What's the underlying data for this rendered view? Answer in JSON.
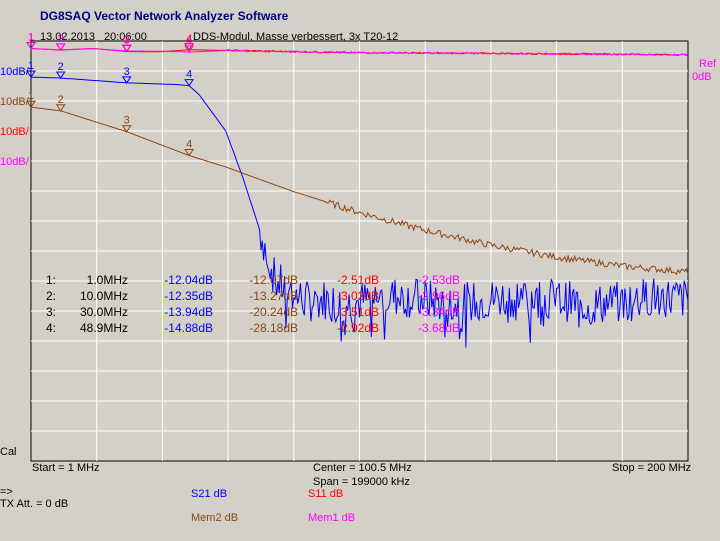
{
  "app": {
    "title": "DG8SAQ Vector Network Analyzer Software",
    "date": "13.02.2013",
    "time": "20:06:00",
    "description": "DDS-Modul, Masse verbessert, 3x T20-12"
  },
  "left_scale": {
    "labels": [
      {
        "text": "10dB/",
        "color": "#0000ff"
      },
      {
        "text": "10dB/",
        "color": "#8b4513"
      },
      {
        "text": "10dB/",
        "color": "#ff0000"
      },
      {
        "text": "10dB/",
        "color": "#ff00ff"
      }
    ],
    "cal": "Cal"
  },
  "right_scale": {
    "ref": "Ref",
    "ref_value": "0dB",
    "colors": [
      "#ff00ff",
      "#ff00ff"
    ]
  },
  "axis": {
    "start": "Start = 1 MHz",
    "center": "Center = 100.5 MHz",
    "span": "Span = 199000 kHz",
    "stop": "Stop = 200 MHz"
  },
  "bottom": {
    "arrow": "=>",
    "tx_att": "TX Att.  = 0 dB"
  },
  "legend": [
    {
      "text": "S21  dB",
      "color": "#0000ff"
    },
    {
      "text": "S11  dB",
      "color": "#ff0000"
    },
    {
      "text": "Mem2 dB",
      "color": "#8b4513"
    },
    {
      "text": "Mem1 dB",
      "color": "#ff00ff"
    }
  ],
  "marker_table": {
    "rows": [
      {
        "id": "1:",
        "freq": "1.0MHz",
        "s21": "-12.04dB",
        "mem2": "-12.07dB",
        "s11": "-2.51dB",
        "mem1": "-2.53dB"
      },
      {
        "id": "2:",
        "freq": "10.0MHz",
        "s21": "-12.35dB",
        "mem2": "-13.27dB",
        "s11": "-3.02dB",
        "mem1": "-2.96dB"
      },
      {
        "id": "3:",
        "freq": "30.0MHz",
        "s21": "-13.94dB",
        "mem2": "-20.24dB",
        "s11": "-3.51dB",
        "mem1": "-3.34dB"
      },
      {
        "id": "4:",
        "freq": "48.9MHz",
        "s21": "-14.88dB",
        "mem2": "-28.18dB",
        "s11": "-2.92dB",
        "mem1": "-3.68dB"
      }
    ]
  },
  "chart_data": {
    "type": "line",
    "x_unit": "MHz",
    "xlim": [
      1,
      200
    ],
    "grid": true,
    "series": [
      {
        "name": "S21",
        "unit": "dB",
        "color": "#0000ff",
        "x": [
          1,
          10,
          30,
          45,
          48.9,
          52,
          60,
          65,
          70,
          75,
          80,
          85,
          90,
          95,
          100,
          110,
          120,
          130,
          140,
          150,
          160,
          170,
          180,
          190,
          200
        ],
        "y": [
          -12.04,
          -12.35,
          -13.94,
          -14.5,
          -14.88,
          -18,
          -30,
          -45,
          -62,
          -80,
          -84,
          -87,
          -86,
          -88,
          -87,
          -85,
          -86,
          -88,
          -86,
          -85,
          -86,
          -88,
          -87,
          -85,
          -86
        ]
      },
      {
        "name": "Mem2",
        "unit": "dB",
        "color": "#8b4513",
        "x": [
          1,
          10,
          30,
          48.9,
          60,
          80,
          100,
          120,
          140,
          160,
          180,
          200
        ],
        "y": [
          -12.07,
          -13.27,
          -20.24,
          -28.18,
          -32,
          -40,
          -47,
          -53,
          -58,
          -62,
          -65,
          -67
        ]
      },
      {
        "name": "S11",
        "unit": "dB",
        "color": "#ff0000",
        "x": [
          1,
          10,
          20,
          30,
          40,
          48.9,
          60,
          80,
          100,
          120,
          140,
          160,
          180,
          200
        ],
        "y": [
          -2.51,
          -3.02,
          -2.5,
          -3.51,
          -3.6,
          -2.92,
          -3.1,
          -3.5,
          -3.9,
          -4.0,
          -4.1,
          -4.3,
          -4.4,
          -4.6
        ]
      },
      {
        "name": "Mem1",
        "unit": "dB",
        "color": "#ff00ff",
        "x": [
          1,
          10,
          20,
          30,
          40,
          48.9,
          60,
          80,
          100,
          120,
          140,
          160,
          180,
          200
        ],
        "y": [
          -2.53,
          -2.96,
          -2.5,
          -3.34,
          -3.4,
          -3.68,
          -3.2,
          -3.6,
          -3.9,
          -4.0,
          -4.1,
          -4.3,
          -4.4,
          -4.6
        ]
      }
    ],
    "markers": [
      {
        "label": "1",
        "x": 1.0
      },
      {
        "label": "2",
        "x": 10.0
      },
      {
        "label": "3",
        "x": 30.0
      },
      {
        "label": "4",
        "x": 48.9
      }
    ]
  }
}
